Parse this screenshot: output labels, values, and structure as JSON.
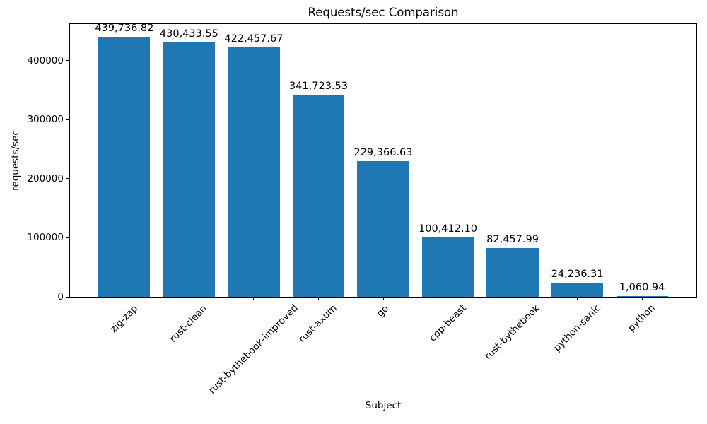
{
  "chart_data": {
    "type": "bar",
    "title": "Requests/sec Comparison",
    "xlabel": "Subject",
    "ylabel": "requests/sec",
    "categories": [
      "zig-zap",
      "rust-clean",
      "rust-bythebook-improved",
      "rust-axum",
      "go",
      "cpp-beast",
      "rust-bythebook",
      "python-sanic",
      "python"
    ],
    "values": [
      439736.82,
      430433.55,
      422457.67,
      341723.53,
      229366.63,
      100412.1,
      82457.99,
      24236.31,
      1060.94
    ],
    "bar_labels": [
      "439,736.82",
      "430,433.55",
      "422,457.67",
      "341,723.53",
      "229,366.63",
      "100,412.10",
      "82,457.99",
      "24,236.31",
      "1,060.94"
    ],
    "yticks": [
      0,
      100000,
      200000,
      300000,
      400000
    ],
    "ytick_labels": [
      "0",
      "100000",
      "200000",
      "300000",
      "400000"
    ],
    "ylim": [
      0,
      461723.66
    ],
    "bar_color": "#1f77b4",
    "background": "#ffffff",
    "grid": false,
    "legend": null,
    "bar_width_fraction": 0.8,
    "x_margin_fraction": 0.05,
    "xtick_rotation_deg": 45
  }
}
